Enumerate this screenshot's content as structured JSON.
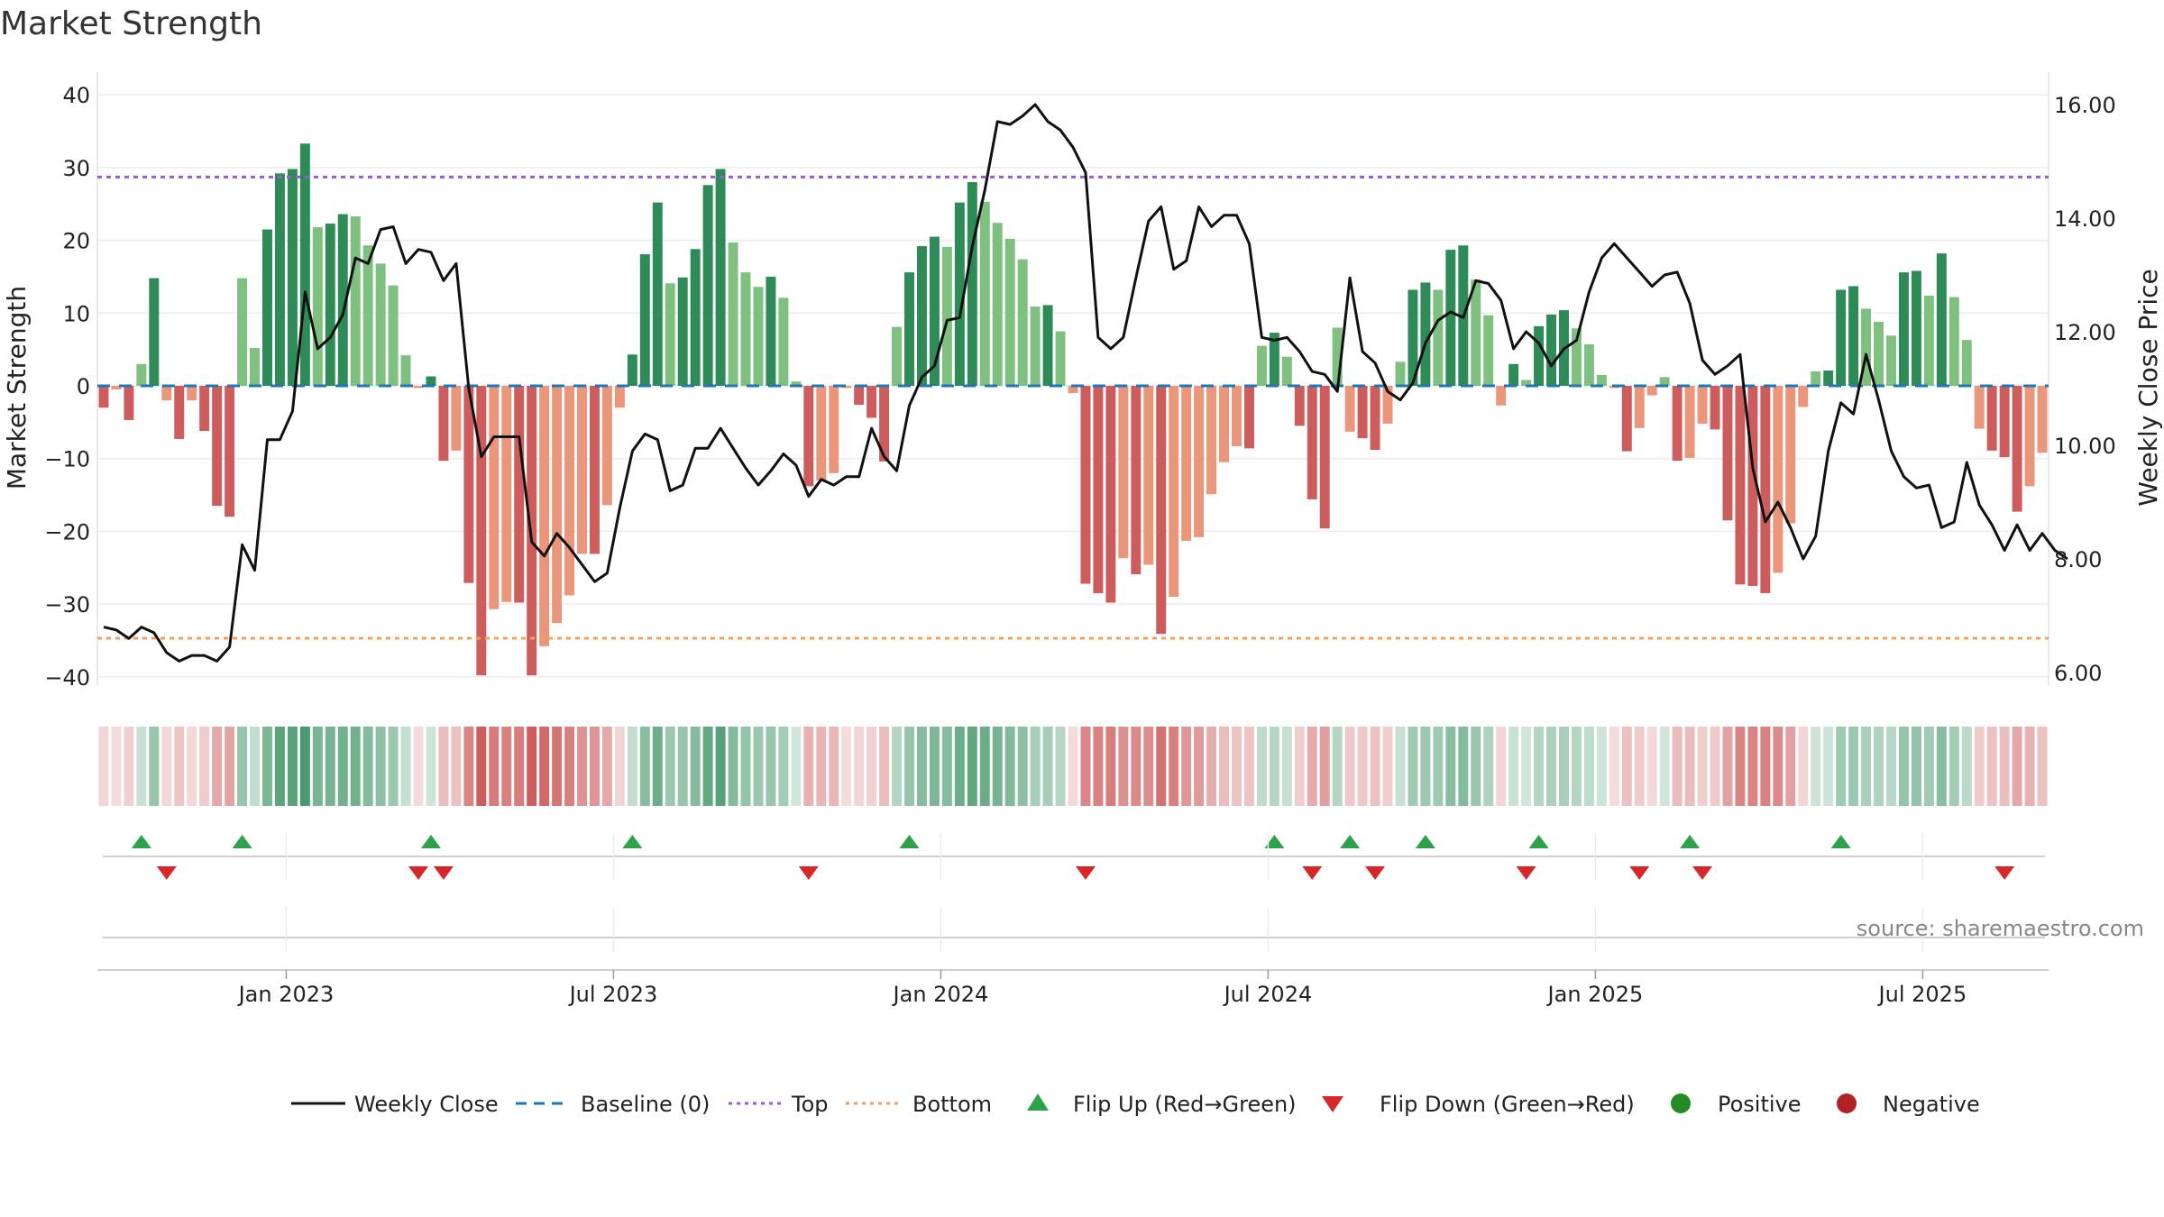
{
  "chart_data": {
    "type": "bar+line",
    "title": "Market Strength",
    "ylabel_left": "Market Strength",
    "ylabel_right": "Weekly Close Price",
    "ylim_left": [
      -40,
      40
    ],
    "yticks_left": [
      40,
      30,
      20,
      10,
      0,
      -10,
      -20,
      -30,
      -40
    ],
    "yticklabels_left": [
      "40",
      "30",
      "20",
      "10",
      "0",
      "−10",
      "−20",
      "−30",
      "−40"
    ],
    "ylim_right": [
      6.0,
      16.0
    ],
    "yticks_right": [
      16,
      14,
      12,
      10,
      8,
      6
    ],
    "yticklabels_right": [
      "16.00",
      "14.00",
      "12.00",
      "10.00",
      "8.00",
      "6.00"
    ],
    "x_tick_labels": [
      "Jan 2023",
      "Jul 2023",
      "Jan 2024",
      "Jul 2024",
      "Jan 2025",
      "Jul 2025"
    ],
    "x_tick_week_index": [
      15,
      41,
      67,
      93,
      119,
      145
    ],
    "top_level": 28.7,
    "bottom_level": -34.7,
    "strength": [
      -3,
      -0.5,
      -4.7,
      3,
      14.8,
      -2,
      -7.3,
      -2,
      -6.2,
      -16.5,
      -18,
      14.8,
      5.2,
      21.5,
      29.2,
      29.8,
      33.3,
      21.8,
      22.3,
      23.6,
      23.3,
      19.3,
      16.8,
      13.8,
      4.2,
      -0.3,
      1.3,
      -10.3,
      -8.9,
      -27.1,
      -39.8,
      -30.7,
      -29.7,
      -29.8,
      -39.8,
      -35.8,
      -32.6,
      -28.8,
      -23.1,
      -23.1,
      -16.4,
      -3,
      4.3,
      18.1,
      25.2,
      14.1,
      14.9,
      18.8,
      27.6,
      29.8,
      19.7,
      15.6,
      13.6,
      15,
      12.1,
      0.6,
      -13.8,
      -13,
      -12,
      -0.3,
      -2.6,
      -4.4,
      -10.4,
      8.1,
      15.6,
      19.2,
      20.5,
      19.1,
      25.2,
      28,
      25.3,
      22.4,
      20.2,
      17.4,
      10.9,
      11.1,
      7.5,
      -1,
      -27.2,
      -28.5,
      -29.8,
      -23.7,
      -25.9,
      -24.6,
      -34.1,
      -29,
      -21.3,
      -20.8,
      -14.9,
      -10.5,
      -8.3,
      -8.6,
      5.5,
      7.3,
      4,
      -5.5,
      -15.6,
      -19.6,
      8,
      -6.3,
      -7.2,
      -8.8,
      -5.2,
      3.3,
      13.2,
      14.2,
      13.2,
      18.7,
      19.3,
      14.6,
      9.7,
      -2.7,
      3,
      0.8,
      8.2,
      9.8,
      10.4,
      7.9,
      5.7,
      1.5,
      -0.3,
      -9,
      -5.8,
      -1.3,
      1.2,
      -10.3,
      -9.9,
      -5.2,
      -6,
      -18.5,
      -27.3,
      -27.5,
      -28.5,
      -25.7,
      -18.9,
      -2.9,
      2,
      2.1,
      13.2,
      13.7,
      10.6,
      8.8,
      6.9,
      15.6,
      15.8,
      12.4,
      18.2,
      12.2,
      6.3,
      -5.9,
      -8.9,
      -9.8,
      -17.3,
      -13.8,
      -9.2
    ],
    "weekly_close": [
      6.8,
      6.75,
      6.6,
      6.8,
      6.7,
      6.35,
      6.2,
      6.3,
      6.3,
      6.2,
      6.45,
      8.25,
      7.8,
      10.1,
      10.1,
      10.6,
      12.7,
      11.7,
      11.9,
      12.3,
      13.3,
      13.2,
      13.8,
      13.85,
      13.2,
      13.45,
      13.4,
      12.9,
      13.2,
      11.0,
      9.8,
      10.15,
      10.15,
      10.15,
      8.3,
      8.05,
      8.45,
      8.2,
      7.9,
      7.6,
      7.75,
      8.9,
      9.9,
      10.2,
      10.1,
      9.2,
      9.3,
      9.95,
      9.95,
      10.3,
      9.95,
      9.6,
      9.3,
      9.55,
      9.85,
      9.65,
      9.1,
      9.4,
      9.3,
      9.45,
      9.45,
      10.3,
      9.8,
      9.55,
      10.7,
      11.2,
      11.4,
      12.2,
      12.25,
      13.5,
      14.5,
      15.7,
      15.65,
      15.8,
      16.0,
      15.7,
      15.55,
      15.25,
      14.8,
      11.9,
      11.7,
      11.9,
      12.95,
      13.95,
      14.2,
      13.1,
      13.25,
      14.2,
      13.85,
      14.05,
      14.05,
      13.55,
      11.9,
      11.85,
      11.9,
      11.65,
      11.3,
      11.25,
      10.95,
      12.95,
      11.65,
      11.45,
      10.95,
      10.8,
      11.1,
      11.8,
      12.2,
      12.35,
      12.25,
      12.9,
      12.85,
      12.55,
      11.7,
      12.0,
      11.8,
      11.4,
      11.7,
      11.85,
      12.7,
      13.3,
      13.55,
      13.3,
      13.05,
      12.8,
      13.0,
      13.05,
      12.5,
      11.5,
      11.25,
      11.4,
      11.6,
      9.6,
      8.65,
      9.0,
      8.55,
      8.0,
      8.4,
      9.9,
      10.75,
      10.55,
      11.6,
      10.8,
      9.9,
      9.45,
      9.25,
      9.3,
      8.55,
      8.65,
      9.7,
      8.95,
      8.6,
      8.15,
      8.6,
      8.15,
      8.45,
      8.15,
      8.0
    ],
    "flips_up_week_index": [
      3,
      11,
      26,
      42,
      64,
      93,
      99,
      105,
      114,
      126,
      138
    ],
    "flips_down_week_index": [
      5,
      25,
      27,
      56,
      78,
      96,
      101,
      113,
      122,
      127,
      151
    ],
    "legend": [
      "Weekly Close",
      "Baseline (0)",
      "Top",
      "Bottom",
      "Flip Up (Red→Green)",
      "Flip Down (Green→Red)",
      "Positive",
      "Negative"
    ],
    "source": "source: sharemaestro.com"
  },
  "colors": {
    "pos_strong": "#2e8b57",
    "pos_weak": "#7fbf7f",
    "neg_strong": "#cd5c5c",
    "neg_weak": "#e9967a",
    "baseline": "#1f77b4",
    "top": "#9b59d6",
    "bottom": "#f0a060",
    "line": "#111111",
    "flip_up": "#2ca34a",
    "flip_down": "#d62828",
    "positive_dot": "#228b22",
    "negative_dot": "#b22222"
  }
}
